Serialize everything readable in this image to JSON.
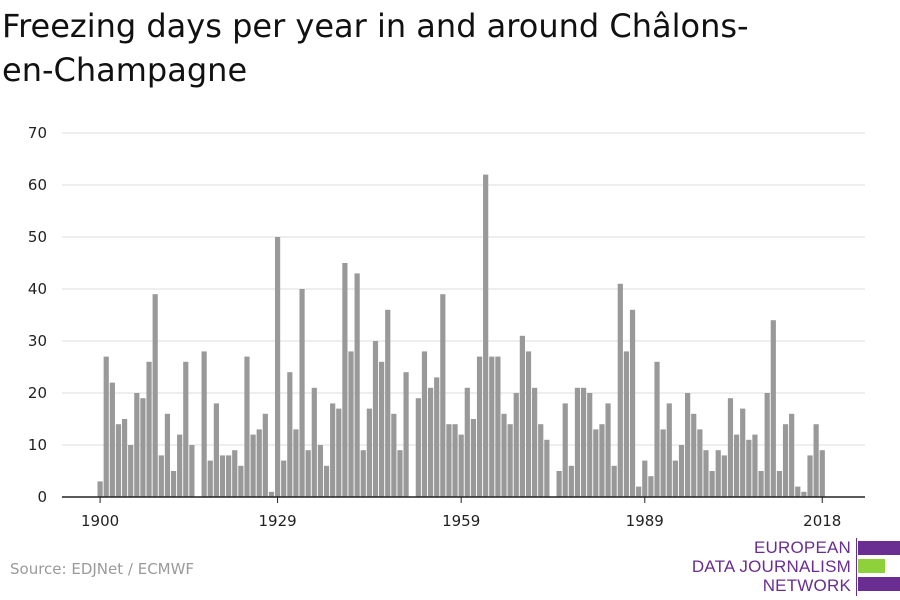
{
  "title": "Freezing days per year in and around Châlons-en-Champagne",
  "source": "Source: EDJNet / ECMWF",
  "logo": {
    "lines": [
      "EUROPEAN",
      "DATA JOURNALISM",
      "NETWORK"
    ],
    "colors": {
      "purple": "#6a2d91",
      "green": "#8fd13a"
    }
  },
  "colors": {
    "bar": "#999999",
    "grid": "#dddddd",
    "axis": "#222222"
  },
  "chart_data": {
    "type": "bar",
    "title": "Freezing days per year in and around Châlons-en-Champagne",
    "xlabel": "",
    "ylabel": "",
    "ylim": [
      0,
      70
    ],
    "yticks": [
      0,
      10,
      20,
      30,
      40,
      50,
      60,
      70
    ],
    "xticks": [
      1900,
      1929,
      1959,
      1989,
      2018
    ],
    "grid": true,
    "x": [
      1900,
      1901,
      1902,
      1903,
      1904,
      1905,
      1906,
      1907,
      1908,
      1909,
      1910,
      1911,
      1912,
      1913,
      1914,
      1915,
      1916,
      1917,
      1918,
      1919,
      1920,
      1921,
      1922,
      1923,
      1924,
      1925,
      1926,
      1927,
      1928,
      1929,
      1930,
      1931,
      1932,
      1933,
      1934,
      1935,
      1936,
      1937,
      1938,
      1939,
      1940,
      1941,
      1942,
      1943,
      1944,
      1945,
      1946,
      1947,
      1948,
      1949,
      1950,
      1951,
      1952,
      1953,
      1954,
      1955,
      1956,
      1957,
      1958,
      1959,
      1960,
      1961,
      1962,
      1963,
      1964,
      1965,
      1966,
      1967,
      1968,
      1969,
      1970,
      1971,
      1972,
      1973,
      1974,
      1975,
      1976,
      1977,
      1978,
      1979,
      1980,
      1981,
      1982,
      1983,
      1984,
      1985,
      1986,
      1987,
      1988,
      1989,
      1990,
      1991,
      1992,
      1993,
      1994,
      1995,
      1996,
      1997,
      1998,
      1999,
      2000,
      2001,
      2002,
      2003,
      2004,
      2005,
      2006,
      2007,
      2008,
      2009,
      2010,
      2011,
      2012,
      2013,
      2014,
      2015,
      2016,
      2017,
      2018
    ],
    "values": [
      3,
      27,
      22,
      14,
      15,
      10,
      20,
      19,
      26,
      39,
      8,
      16,
      5,
      12,
      26,
      10,
      0,
      28,
      7,
      18,
      8,
      8,
      9,
      6,
      27,
      12,
      13,
      16,
      1,
      50,
      7,
      24,
      13,
      40,
      9,
      21,
      10,
      6,
      18,
      17,
      45,
      28,
      43,
      9,
      17,
      30,
      26,
      36,
      16,
      9,
      24,
      0,
      19,
      28,
      21,
      23,
      39,
      14,
      14,
      12,
      21,
      15,
      27,
      62,
      27,
      27,
      16,
      14,
      20,
      31,
      28,
      21,
      14,
      11,
      0,
      5,
      18,
      6,
      21,
      21,
      20,
      13,
      14,
      18,
      6,
      41,
      28,
      36,
      2,
      7,
      4,
      26,
      13,
      18,
      7,
      10,
      20,
      16,
      13,
      9,
      5,
      9,
      8,
      19,
      12,
      17,
      11,
      12,
      5,
      20,
      34,
      5,
      14,
      16,
      2,
      1,
      8,
      14,
      9
    ]
  }
}
